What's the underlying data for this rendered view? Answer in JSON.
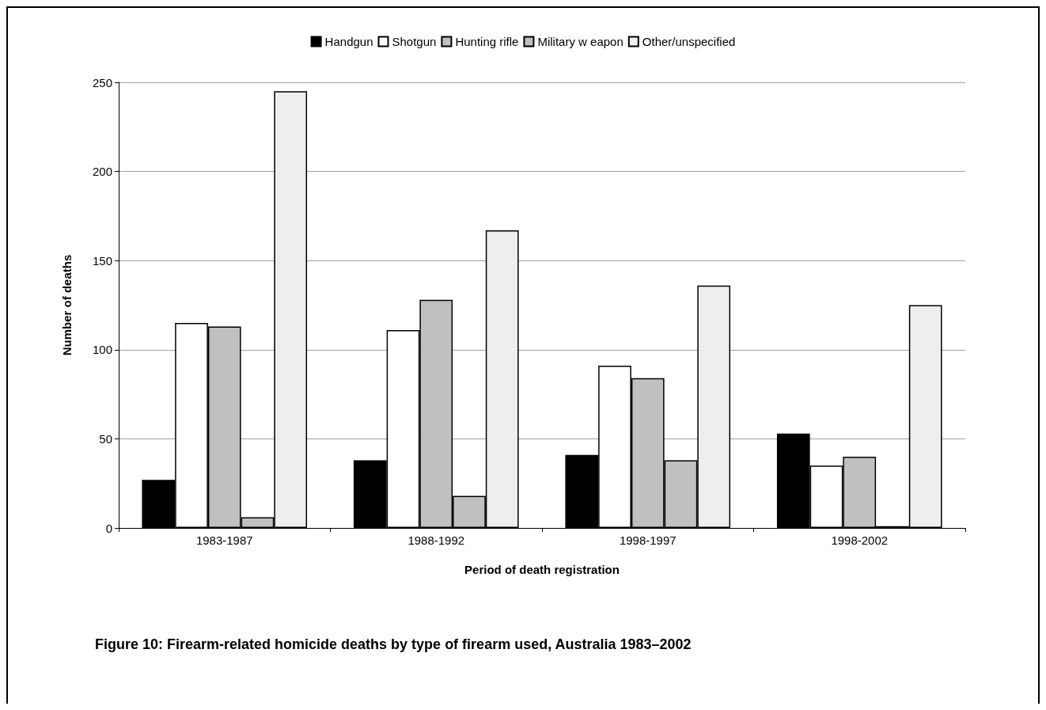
{
  "chart_data": {
    "type": "bar",
    "title": "Figure 10: Firearm-related homicide deaths by type of firearm used, Australia 1983–2002",
    "xlabel": "Period of death registration",
    "ylabel": "Number of deaths",
    "categories": [
      "1983-1987",
      "1988-1992",
      "1998-1997",
      "1998-2002"
    ],
    "series": [
      {
        "name": "Handgun",
        "color": "#000000",
        "values": [
          27,
          38,
          41,
          53
        ]
      },
      {
        "name": "Shotgun",
        "color": "#ffffff",
        "values": [
          115,
          111,
          91,
          35
        ]
      },
      {
        "name": "Hunting rifle",
        "color": "#c0c0c0",
        "values": [
          113,
          128,
          84,
          40
        ]
      },
      {
        "name": "Military w eapon",
        "color": "#c0c0c0",
        "values": [
          6,
          18,
          38,
          1
        ]
      },
      {
        "name": "Other/unspecified",
        "color": "#eeeeee",
        "values": [
          245,
          167,
          136,
          125
        ]
      }
    ],
    "ylim": [
      0,
      250
    ],
    "yticks": [
      0,
      50,
      100,
      150,
      200,
      250
    ],
    "grid": "y",
    "legend": "top"
  }
}
